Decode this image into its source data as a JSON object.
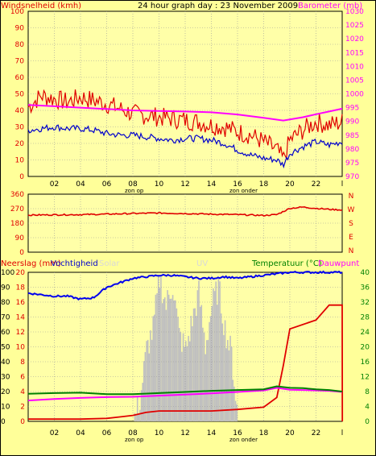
{
  "header": {
    "title": "24 hour graph day : 23 November 2009"
  },
  "time_axis": {
    "labels": [
      "02",
      "04",
      "06",
      "08",
      "10",
      "12",
      "14",
      "16",
      "18",
      "20",
      "22",
      "l"
    ],
    "sunrise": "zon op",
    "sunset": "zon onder"
  },
  "colors": {
    "background": "#ffff99",
    "plot": "#ffffa8",
    "grid": "#9a9a9a",
    "wind_gust": "#e00000",
    "wind_avg": "#0000cc",
    "barometer": "#ff00ff",
    "direction": "#e00000",
    "humidity": "#0000ee",
    "solar": "#c0c0c0",
    "uv": "#ffff66",
    "temperature": "#008000",
    "dewpoint": "#ff00ff",
    "rain": "#e00000",
    "right_axis_baro": "#ff00ff",
    "right_axis_temp": "#008000"
  },
  "chart_data": [
    {
      "type": "line",
      "name": "wind_barometer",
      "left_label": "Windsnelheid (kmh)",
      "right_label": "Barometer (mb)",
      "yleft_ticks": [
        "0",
        "10",
        "20",
        "30",
        "40",
        "50",
        "60",
        "70",
        "80",
        "90",
        "100"
      ],
      "yleft_lim": [
        0,
        100
      ],
      "yright_ticks": [
        "970",
        "975",
        "980",
        "985",
        "990",
        "995",
        "1000",
        "1005",
        "1010",
        "1015",
        "1020",
        "1025",
        "1030"
      ],
      "yright_lim": [
        970,
        1030
      ],
      "grid": true,
      "series": [
        {
          "key": "gust",
          "x": [
            0,
            1,
            2,
            3,
            4,
            5,
            6,
            7,
            8,
            9,
            10,
            11,
            12,
            13,
            14,
            15,
            16,
            17,
            18,
            19,
            19.5,
            20,
            21,
            22,
            23,
            24
          ],
          "values": [
            42,
            49,
            47,
            45,
            48,
            46,
            44,
            41,
            38,
            37,
            36,
            35,
            34,
            33,
            31,
            30,
            27,
            25,
            21,
            16,
            10,
            22,
            28,
            33,
            31,
            33
          ]
        },
        {
          "key": "avg",
          "x": [
            0,
            1,
            2,
            3,
            4,
            5,
            6,
            7,
            8,
            9,
            10,
            11,
            12,
            13,
            14,
            15,
            16,
            17,
            18,
            19,
            19.5,
            20,
            21,
            22,
            23,
            24
          ],
          "values": [
            28,
            29,
            30,
            29,
            29,
            28,
            26,
            25,
            25,
            24,
            23,
            22,
            23,
            23,
            22,
            20,
            16,
            13,
            11,
            10,
            7,
            14,
            18,
            21,
            19,
            21
          ]
        },
        {
          "key": "barometer",
          "x": [
            0,
            2,
            4,
            6,
            8,
            10,
            12,
            14,
            16,
            18,
            19.5,
            21,
            22,
            23,
            24
          ],
          "values": [
            996,
            995.5,
            995,
            994.5,
            994,
            993.8,
            993.6,
            993.3,
            992.5,
            991.3,
            990.3,
            991.5,
            992.6,
            993.6,
            994.6
          ]
        }
      ]
    },
    {
      "type": "line",
      "name": "wind_direction",
      "yleft_ticks": [
        "0",
        "90",
        "180",
        "270",
        "360"
      ],
      "yleft_lim": [
        0,
        360
      ],
      "right_ticks": [
        "N",
        "W",
        "S",
        "E",
        "N"
      ],
      "grid": true,
      "series": [
        {
          "key": "direction",
          "x": [
            0,
            2,
            4,
            6,
            8,
            10,
            12,
            14,
            16,
            18,
            19,
            20,
            21,
            22,
            23,
            24
          ],
          "values": [
            230,
            232,
            233,
            236,
            240,
            243,
            240,
            236,
            233,
            228,
            233,
            272,
            280,
            272,
            266,
            262
          ]
        }
      ]
    },
    {
      "type": "area",
      "name": "rain_humidity_temp",
      "left_labels": [
        "Neerslag (mm)",
        "Vochtigheid",
        "Solar",
        "UV"
      ],
      "right_labels": [
        "Temperatuur (°C)",
        "Dauwpunt"
      ],
      "yleft_outer_ticks": [
        "0",
        "10",
        "20",
        "30",
        "40",
        "50",
        "60",
        "70",
        "80",
        "90",
        "100"
      ],
      "yleft_inner_ticks": [
        "0",
        "2",
        "4",
        "6",
        "8",
        "10",
        "12",
        "14",
        "16",
        "18",
        "20"
      ],
      "yleft_inner_lim": [
        0,
        20
      ],
      "yright_ticks": [
        "0",
        "4",
        "8",
        "12",
        "16",
        "20",
        "24",
        "28",
        "32",
        "36",
        "40"
      ],
      "yright_lim": [
        0,
        40
      ],
      "grid": true,
      "series": [
        {
          "key": "humidity",
          "x": [
            0,
            1,
            2,
            3,
            4,
            5,
            6,
            7,
            8,
            9,
            10,
            11,
            12,
            13,
            14,
            15,
            16,
            17,
            18,
            19,
            20,
            21,
            22,
            23,
            24
          ],
          "values": [
            86,
            85,
            84,
            84,
            82,
            83,
            90,
            93,
            96,
            97,
            98,
            98,
            97,
            96,
            96,
            97,
            96,
            97,
            98,
            99,
            100,
            100,
            100,
            100,
            100
          ]
        },
        {
          "key": "temperature",
          "x": [
            0,
            2,
            4,
            6,
            8,
            10,
            12,
            14,
            16,
            18,
            19,
            20,
            21,
            22,
            23,
            24
          ],
          "values": [
            7.4,
            7.6,
            7.7,
            7.3,
            7.3,
            7.6,
            7.9,
            8.2,
            8.4,
            8.6,
            9.4,
            9.0,
            8.9,
            8.6,
            8.4,
            8.0
          ]
        },
        {
          "key": "dewpoint",
          "x": [
            0,
            2,
            4,
            6,
            8,
            10,
            12,
            14,
            16,
            18,
            19,
            20,
            21,
            22,
            23,
            24
          ],
          "values": [
            5.6,
            6.0,
            6.3,
            6.5,
            6.6,
            6.9,
            7.2,
            7.5,
            7.9,
            8.3,
            9.0,
            8.5,
            8.4,
            8.3,
            8.2,
            7.9
          ]
        },
        {
          "key": "rain",
          "x": [
            0,
            4,
            6,
            7,
            8,
            9,
            10,
            12,
            14,
            16,
            18,
            19,
            19.5,
            20,
            22,
            23,
            24,
            24.01
          ],
          "values": [
            0.3,
            0.3,
            0.4,
            0.6,
            0.8,
            1.2,
            1.4,
            1.4,
            1.4,
            1.6,
            1.9,
            3.2,
            7.5,
            12.4,
            13.6,
            15.6,
            15.6,
            0
          ]
        },
        {
          "key": "solar",
          "x": [
            0,
            8,
            8.5,
            9,
            9.5,
            10,
            10.5,
            11,
            11.5,
            12,
            12.5,
            13,
            13.5,
            14,
            14.5,
            15,
            15.5,
            16,
            17,
            24
          ],
          "values": [
            0,
            0,
            14,
            48,
            62,
            96,
            78,
            92,
            58,
            48,
            68,
            86,
            50,
            78,
            90,
            62,
            45,
            0,
            0,
            0
          ]
        }
      ]
    }
  ]
}
